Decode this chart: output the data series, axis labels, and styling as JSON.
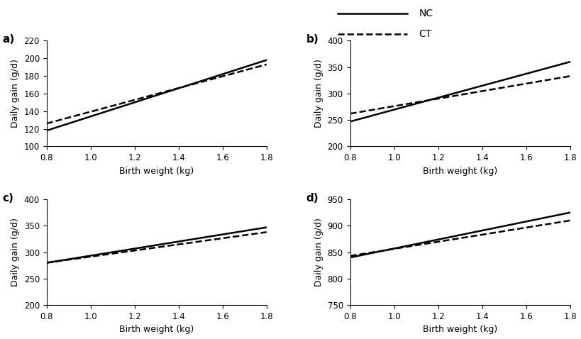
{
  "x_start": 0.8,
  "x_end": 1.8,
  "xlabel": "Birth weight (kg)",
  "ylabel": "Daily gain (g/d)",
  "panels": [
    {
      "label": "a)",
      "ylim": [
        100,
        220
      ],
      "yticks": [
        100,
        120,
        140,
        160,
        180,
        200,
        220
      ],
      "NC": [
        118,
        198
      ],
      "CT": [
        126,
        193
      ]
    },
    {
      "label": "b)",
      "ylim": [
        200,
        400
      ],
      "yticks": [
        200,
        250,
        300,
        350,
        400
      ],
      "NC": [
        247,
        360
      ],
      "CT": [
        262,
        333
      ]
    },
    {
      "label": "c)",
      "ylim": [
        200,
        400
      ],
      "yticks": [
        200,
        250,
        300,
        350,
        400
      ],
      "NC": [
        280,
        347
      ],
      "CT": [
        280,
        338
      ]
    },
    {
      "label": "d)",
      "ylim": [
        750,
        950
      ],
      "yticks": [
        750,
        800,
        850,
        900,
        950
      ],
      "NC": [
        840,
        925
      ],
      "CT": [
        843,
        910
      ]
    }
  ],
  "xticks": [
    0.8,
    1.0,
    1.2,
    1.4,
    1.6,
    1.8
  ],
  "line_color": "#000000",
  "NC_linestyle": "solid",
  "CT_linestyle": "dashed",
  "linewidth": 1.8,
  "legend_NC": "NC",
  "legend_CT": "CT",
  "background_color": "#ffffff",
  "label_fontsize": 9,
  "tick_fontsize": 8.5,
  "legend_fontsize": 10,
  "panel_label_fontsize": 11
}
